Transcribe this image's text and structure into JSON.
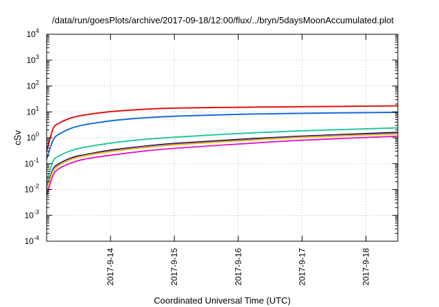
{
  "chart_data": {
    "type": "line",
    "title": "/data/run/goesPlots/archive/2017-09-18/12:00/flux/../bryn/5daysMoonAccumulated.plot",
    "xlabel": "Coordinated Universal Time (UTC)",
    "ylabel": "cSv",
    "y_scale": "log",
    "ylim": [
      0.0001,
      10000
    ],
    "xlim": [
      "2017-09-13 00:00",
      "2017-09-18 12:00"
    ],
    "x_ticks": [
      "2017-9-14",
      "2017-9-15",
      "2017-9-16",
      "2017-9-17",
      "2017-9-18"
    ],
    "y_ticks": [
      {
        "base": "10",
        "exp": "-4"
      },
      {
        "base": "10",
        "exp": "-3"
      },
      {
        "base": "10",
        "exp": "-2"
      },
      {
        "base": "10",
        "exp": "-1"
      },
      {
        "base": "10",
        "exp": "0"
      },
      {
        "base": "10",
        "exp": "1"
      },
      {
        "base": "10",
        "exp": "2"
      },
      {
        "base": "10",
        "exp": "3"
      },
      {
        "base": "10",
        "exp": "4"
      }
    ],
    "grid": true,
    "series": [
      {
        "color": "#e01010",
        "x": [
          "2017-09-13 00:00",
          "2017-09-13 02:24",
          "2017-09-13 04:48",
          "2017-09-13 09:36",
          "2017-09-13 14:24",
          "2017-09-14 00:00",
          "2017-09-14 12:00",
          "2017-09-15 00:00",
          "2017-09-16 00:00",
          "2017-09-17 00:00",
          "2017-09-18 12:00"
        ],
        "values": [
          0.3,
          2.2,
          3.7,
          6.0,
          7.6,
          10.2,
          12.5,
          14.0,
          15.0,
          15.8,
          17.0
        ]
      },
      {
        "color": "#1868e0",
        "x": [
          "2017-09-13 00:00",
          "2017-09-13 02:24",
          "2017-09-13 04:48",
          "2017-09-13 09:36",
          "2017-09-13 14:24",
          "2017-09-14 00:00",
          "2017-09-14 12:00",
          "2017-09-15 00:00",
          "2017-09-16 00:00",
          "2017-09-17 00:00",
          "2017-09-18 12:00"
        ],
        "values": [
          0.15,
          0.8,
          1.4,
          2.4,
          3.2,
          4.5,
          5.8,
          6.8,
          8.0,
          8.8,
          9.6
        ]
      },
      {
        "color": "#20c8a0",
        "x": [
          "2017-09-13 00:00",
          "2017-09-13 02:24",
          "2017-09-13 04:48",
          "2017-09-13 09:36",
          "2017-09-13 14:24",
          "2017-09-14 00:00",
          "2017-09-14 12:00",
          "2017-09-15 00:00",
          "2017-09-16 00:00",
          "2017-09-17 00:00",
          "2017-09-18 12:00"
        ],
        "values": [
          0.02,
          0.12,
          0.2,
          0.33,
          0.43,
          0.62,
          0.85,
          1.05,
          1.45,
          1.85,
          2.4
        ]
      },
      {
        "color": "#101010",
        "x": [
          "2017-09-13 00:00",
          "2017-09-13 02:24",
          "2017-09-13 04:48",
          "2017-09-13 09:36",
          "2017-09-13 14:24",
          "2017-09-14 00:00",
          "2017-09-14 12:00",
          "2017-09-15 00:00",
          "2017-09-16 00:00",
          "2017-09-17 00:00",
          "2017-09-18 12:00"
        ],
        "values": [
          0.012,
          0.06,
          0.1,
          0.17,
          0.22,
          0.33,
          0.46,
          0.6,
          0.85,
          1.15,
          1.6
        ]
      },
      {
        "color": "#7030c0",
        "x": [
          "2017-09-13 00:00",
          "2017-09-13 02:24",
          "2017-09-13 04:48",
          "2017-09-13 09:36",
          "2017-09-13 14:24",
          "2017-09-14 00:00",
          "2017-09-14 12:00",
          "2017-09-15 00:00",
          "2017-09-16 00:00",
          "2017-09-17 00:00",
          "2017-09-18 12:00"
        ],
        "values": [
          0.011,
          0.055,
          0.095,
          0.16,
          0.21,
          0.31,
          0.44,
          0.57,
          0.8,
          1.1,
          1.5
        ]
      },
      {
        "color": "#e8c020",
        "x": [
          "2017-09-13 00:00",
          "2017-09-13 02:24",
          "2017-09-13 04:48",
          "2017-09-13 09:36",
          "2017-09-13 14:24",
          "2017-09-14 00:00",
          "2017-09-14 12:00",
          "2017-09-15 00:00",
          "2017-09-16 00:00",
          "2017-09-17 00:00",
          "2017-09-18 12:00"
        ],
        "values": [
          0.01,
          0.05,
          0.088,
          0.15,
          0.2,
          0.29,
          0.41,
          0.53,
          0.75,
          1.03,
          1.4
        ]
      },
      {
        "color": "#e020c0",
        "x": [
          "2017-09-13 00:00",
          "2017-09-13 02:24",
          "2017-09-13 04:48",
          "2017-09-13 09:36",
          "2017-09-13 14:24",
          "2017-09-14 00:00",
          "2017-09-14 12:00",
          "2017-09-15 00:00",
          "2017-09-16 00:00",
          "2017-09-17 00:00",
          "2017-09-18 12:00"
        ],
        "values": [
          0.006,
          0.035,
          0.065,
          0.11,
          0.15,
          0.21,
          0.3,
          0.39,
          0.57,
          0.8,
          1.15
        ]
      }
    ]
  }
}
